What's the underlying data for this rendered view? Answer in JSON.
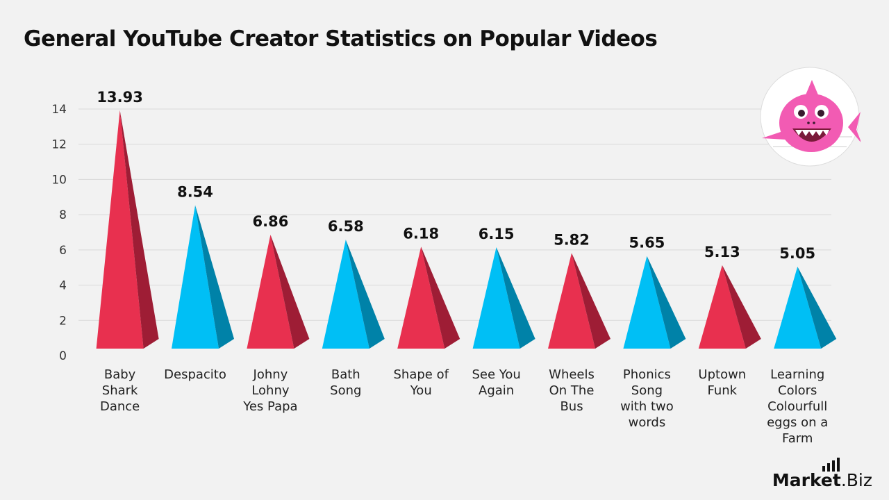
{
  "title": "General YouTube Creator Statistics on Popular Videos",
  "brand": {
    "name": "Market",
    "tld": ".Biz"
  },
  "colors": {
    "red": "#e8304f",
    "red_dark": "#9e1d35",
    "blue": "#00bff5",
    "blue_dark": "#0082a8",
    "grid": "#d9d9d9"
  },
  "logo_icon": "baby-shark-icon",
  "chart_data": {
    "type": "bar",
    "title": "General YouTube Creator Statistics on Popular Videos",
    "xlabel": "",
    "ylabel": "",
    "ylim": [
      0,
      14
    ],
    "yticks": [
      0,
      2,
      4,
      6,
      8,
      10,
      12,
      14
    ],
    "grid": true,
    "bar_shape": "pyramid",
    "categories": [
      "Baby Shark Dance",
      "Despacito",
      "Johny Lohny Yes Papa",
      "Bath Song",
      "Shape of You",
      "See You Again",
      "Wheels On The Bus",
      "Phonics Song with two words",
      "Uptown Funk",
      "Learning Colors Colourfull eggs on a Farm"
    ],
    "category_lines": [
      [
        "Baby",
        "Shark",
        "Dance"
      ],
      [
        "Despacito"
      ],
      [
        "Johny",
        "Lohny",
        "Yes Papa"
      ],
      [
        "Bath",
        "Song"
      ],
      [
        "Shape of",
        "You"
      ],
      [
        "See You",
        "Again"
      ],
      [
        "Wheels",
        "On The",
        "Bus"
      ],
      [
        "Phonics",
        "Song",
        "with two",
        "words"
      ],
      [
        "Uptown",
        "Funk"
      ],
      [
        "Learning",
        "Colors",
        "Colourfull",
        "eggs on a",
        "Farm"
      ]
    ],
    "values": [
      13.93,
      8.54,
      6.86,
      6.58,
      6.18,
      6.15,
      5.82,
      5.65,
      5.13,
      5.05
    ],
    "value_labels": [
      "13.93",
      "8.54",
      "6.86",
      "6.58",
      "6.18",
      "6.15",
      "5.82",
      "5.65",
      "5.13",
      "5.05"
    ],
    "bar_colors": [
      "red",
      "blue",
      "red",
      "blue",
      "red",
      "blue",
      "red",
      "blue",
      "red",
      "blue"
    ]
  }
}
